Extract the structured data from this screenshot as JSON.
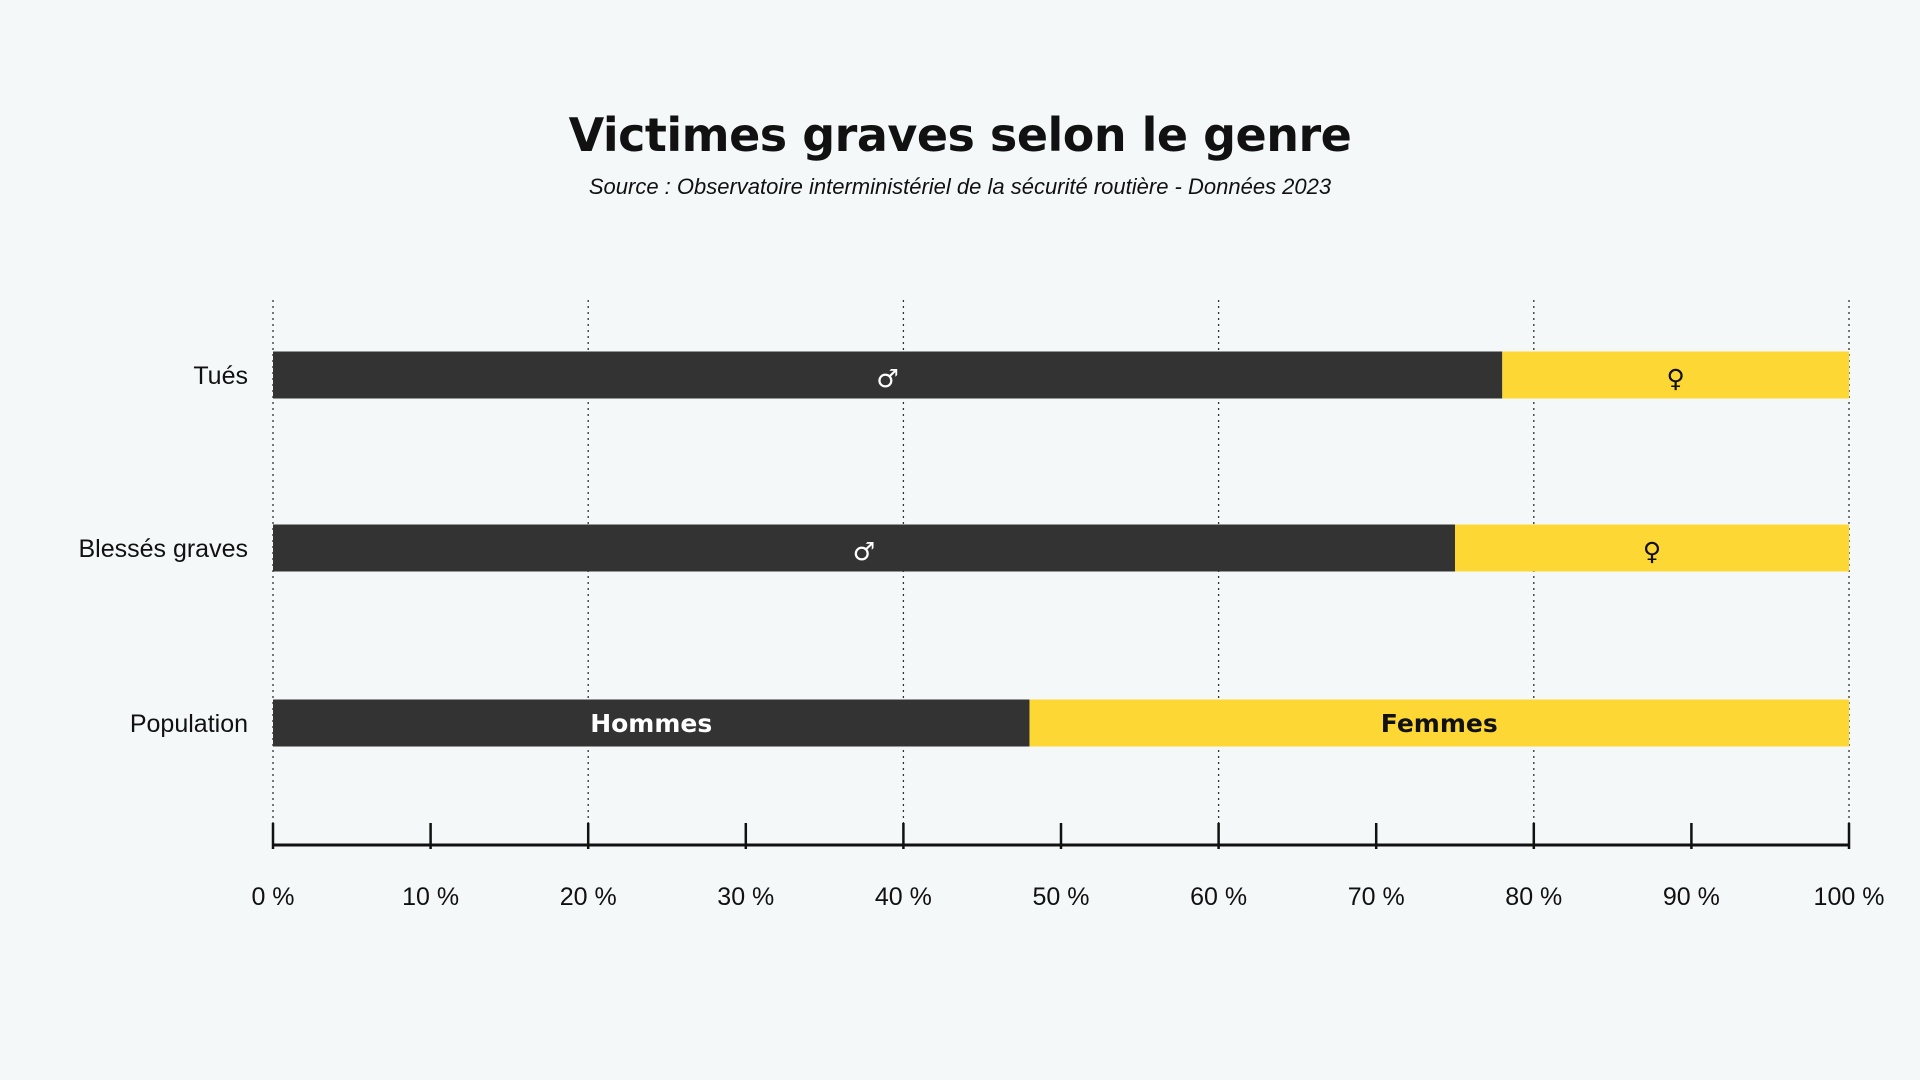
{
  "title": "Victimes graves selon le genre",
  "subtitle": "Source : Observatoire interministériel de la sécurité routière - Données 2023",
  "colors": {
    "hommes": "#333333",
    "femmes": "#fdd835",
    "background": "#f4f8f9",
    "text": "#111111"
  },
  "chart_data": {
    "type": "bar",
    "orientation": "horizontal",
    "stacked": true,
    "percent_stacked": true,
    "title": "Victimes graves selon le genre",
    "subtitle": "Source : Observatoire interministériel de la sécurité routière - Données 2023",
    "categories": [
      "Tués",
      "Blessés graves",
      "Population"
    ],
    "series": [
      {
        "name": "Hommes",
        "values": [
          78,
          75,
          48
        ],
        "color": "#333333",
        "segment_labels": [
          "♂",
          "♂",
          "Hommes"
        ],
        "segment_icons": [
          "male-icon",
          "male-icon",
          null
        ]
      },
      {
        "name": "Femmes",
        "values": [
          22,
          25,
          52
        ],
        "color": "#fdd835",
        "segment_labels": [
          "♀",
          "♀",
          "Femmes"
        ],
        "segment_icons": [
          "female-icon",
          "female-icon",
          null
        ]
      }
    ],
    "xlim": [
      0,
      100
    ],
    "x_ticks": [
      0,
      10,
      20,
      30,
      40,
      50,
      60,
      70,
      80,
      90,
      100
    ],
    "x_tick_labels": [
      "0 %",
      "10 %",
      "20 %",
      "30 %",
      "40 %",
      "50 %",
      "60 %",
      "70 %",
      "80 %",
      "90 %",
      "100 %"
    ],
    "gridlines": [
      0,
      20,
      40,
      60,
      80,
      100
    ],
    "grid_style": "dotted",
    "legend": "none"
  }
}
